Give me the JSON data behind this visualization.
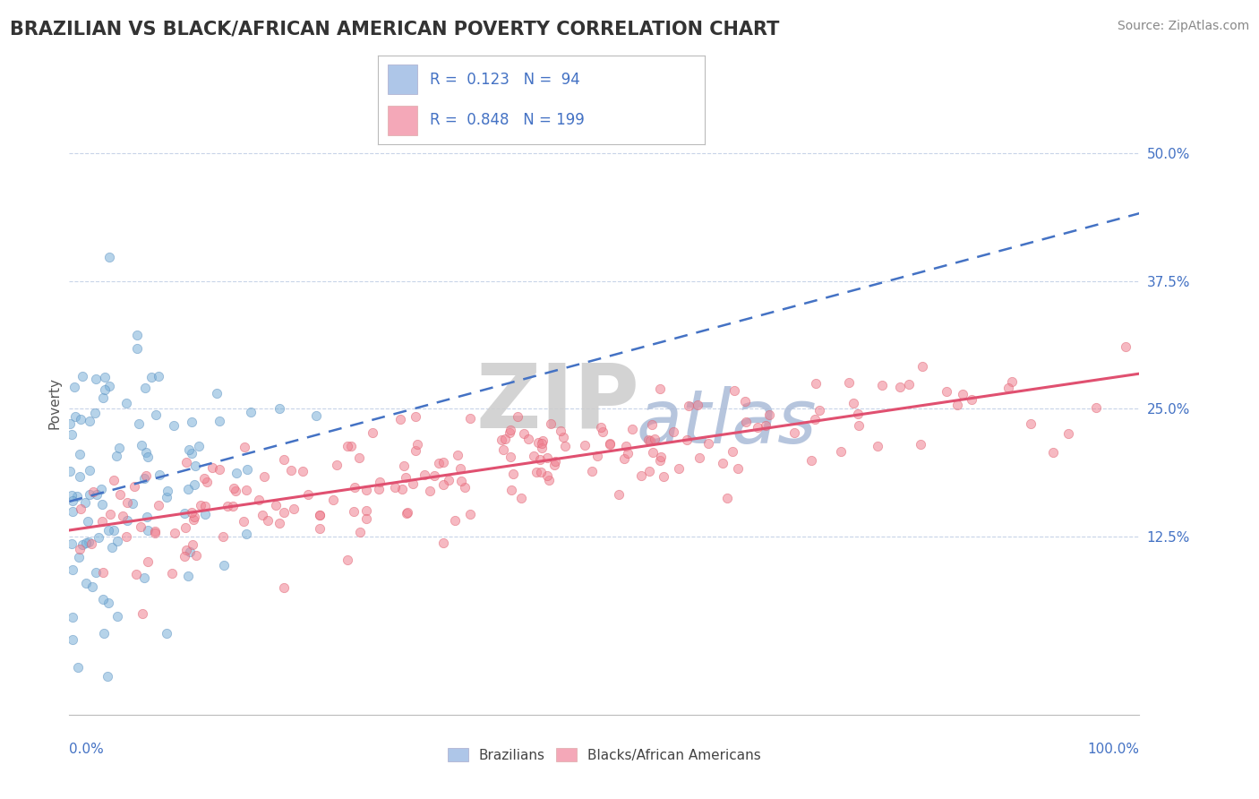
{
  "title": "BRAZILIAN VS BLACK/AFRICAN AMERICAN POVERTY CORRELATION CHART",
  "source": "Source: ZipAtlas.com",
  "ylabel": "Poverty",
  "ytick_labels": [
    "12.5%",
    "25.0%",
    "37.5%",
    "50.0%"
  ],
  "ytick_values": [
    0.125,
    0.25,
    0.375,
    0.5
  ],
  "xlim": [
    0.0,
    1.0
  ],
  "ylim": [
    -0.05,
    0.56
  ],
  "series1_color": "#7ab0d8",
  "series2_color": "#f08090",
  "series1_edge": "#5a90c0",
  "series2_edge": "#e06070",
  "trendline1_color": "#4472c4",
  "trendline2_color": "#e05070",
  "watermark_zip_color": "#cccccc",
  "watermark_atlas_color": "#aabbd8",
  "background_color": "#ffffff",
  "grid_color": "#c8d4e8",
  "legend_label1": "Brazilians",
  "legend_label2": "Blacks/African Americans",
  "legend_box_color": "#aec6e8",
  "legend_box2_color": "#f4a8b8",
  "text_color": "#4472c4",
  "R1": 0.123,
  "N1": 94,
  "R2": 0.848,
  "N2": 199,
  "title_color": "#333333",
  "source_color": "#888888"
}
